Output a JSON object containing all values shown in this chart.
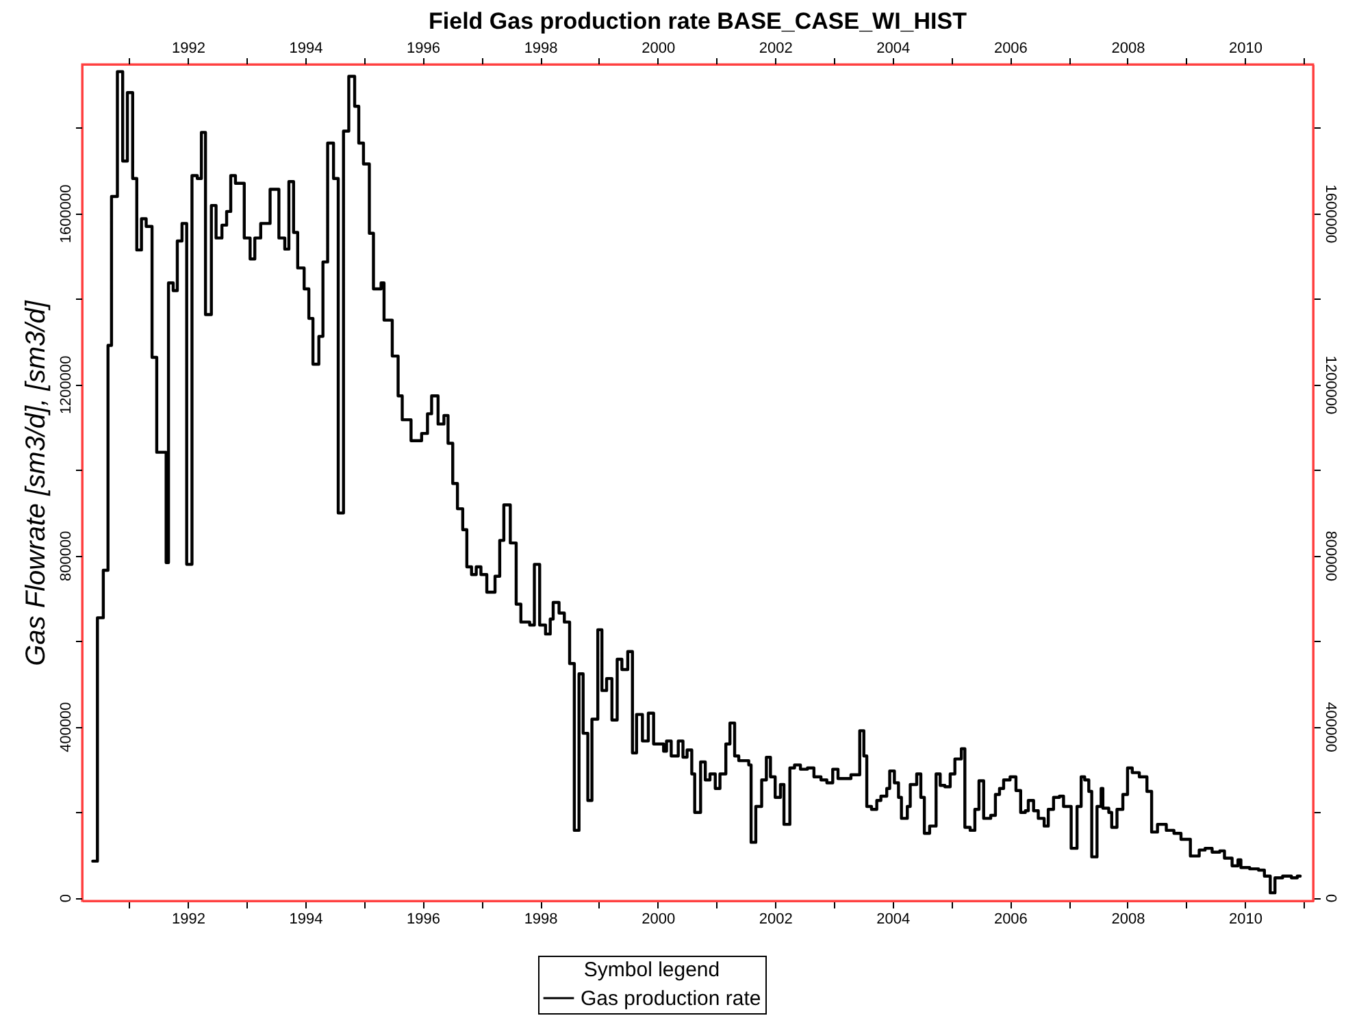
{
  "chart_data": {
    "type": "step",
    "title": "Field Gas production rate BASE_CASE_WI_HIST",
    "ylabel": "Gas Flowrate [sm3/d], [sm3/d]",
    "legend_title": "Symbol legend",
    "legend": "bottom",
    "grid": false,
    "xlim": [
      1990.2,
      2011.16
    ],
    "xticks": [
      {
        "value": 1991,
        "label": null
      },
      1992,
      {
        "value": 1993,
        "label": null
      },
      1994,
      {
        "value": 1995,
        "label": null
      },
      1996,
      {
        "value": 1997,
        "label": null
      },
      1998,
      {
        "value": 1999,
        "label": null
      },
      2000,
      {
        "value": 2001,
        "label": null
      },
      2002,
      {
        "value": 2003,
        "label": null
      },
      2004,
      {
        "value": 2005,
        "label": null
      },
      2006,
      {
        "value": 2007,
        "label": null
      },
      2008,
      {
        "value": 2009,
        "label": null
      },
      2010,
      {
        "value": 2011,
        "label": null
      }
    ],
    "x2lim": [
      1990.2,
      2011.16
    ],
    "x2ticks": [
      {
        "value": 1991,
        "label": null
      },
      1992,
      {
        "value": 1993,
        "label": null
      },
      1994,
      {
        "value": 1995,
        "label": null
      },
      1996,
      {
        "value": 1997,
        "label": null
      },
      1998,
      {
        "value": 1999,
        "label": null
      },
      2000,
      {
        "value": 2001,
        "label": null
      },
      2002,
      {
        "value": 2003,
        "label": null
      },
      2004,
      {
        "value": 2005,
        "label": null
      },
      2006,
      {
        "value": 2007,
        "label": null
      },
      2008,
      {
        "value": 2009,
        "label": null
      },
      2010,
      {
        "value": 2011,
        "label": null
      }
    ],
    "ylim": [
      -8000,
      1948000
    ],
    "yticks": [
      0,
      {
        "value": 200000,
        "label": null
      },
      400000,
      {
        "value": 600000,
        "label": null
      },
      800000,
      {
        "value": 1000000,
        "label": null
      },
      1200000,
      {
        "value": 1400000,
        "label": null
      },
      1600000,
      {
        "value": 1800000,
        "label": null
      }
    ],
    "y2lim": [
      -8000,
      1948000
    ],
    "y2ticks": [
      0,
      {
        "value": 200000,
        "label": null
      },
      400000,
      {
        "value": 600000,
        "label": null
      },
      800000,
      {
        "value": 1000000,
        "label": null
      },
      1200000,
      {
        "value": 1400000,
        "label": null
      },
      1600000,
      {
        "value": 1800000,
        "label": null
      }
    ],
    "series": [
      {
        "name": "Gas production rate",
        "color": "#000000",
        "x": [
          1990.38,
          1990.46,
          1990.56,
          1990.64,
          1990.7,
          1990.8,
          1990.89,
          1990.97,
          1991.06,
          1991.13,
          1991.21,
          1991.29,
          1991.39,
          1991.47,
          1991.63,
          1991.67,
          1991.75,
          1991.82,
          1991.9,
          1991.98,
          1992.07,
          1992.16,
          1992.23,
          1992.3,
          1992.4,
          1992.48,
          1992.58,
          1992.66,
          1992.73,
          1992.81,
          1992.96,
          1993.06,
          1993.14,
          1993.24,
          1993.4,
          1993.55,
          1993.65,
          1993.72,
          1993.8,
          1993.87,
          1993.98,
          1994.06,
          1994.13,
          1994.23,
          1994.3,
          1994.38,
          1994.48,
          1994.56,
          1994.65,
          1994.74,
          1994.84,
          1994.91,
          1994.99,
          1995.09,
          1995.16,
          1995.29,
          1995.34,
          1995.48,
          1995.58,
          1995.65,
          1995.8,
          1995.98,
          1996.08,
          1996.15,
          1996.26,
          1996.36,
          1996.43,
          1996.51,
          1996.59,
          1996.68,
          1996.75,
          1996.83,
          1996.91,
          1996.99,
          1997.09,
          1997.23,
          1997.31,
          1997.38,
          1997.49,
          1997.59,
          1997.67,
          1997.82,
          1997.9,
          1997.99,
          1998.09,
          1998.17,
          1998.22,
          1998.32,
          1998.41,
          1998.5,
          1998.58,
          1998.66,
          1998.73,
          1998.81,
          1998.88,
          1998.98,
          1999.05,
          1999.13,
          1999.22,
          1999.31,
          1999.39,
          1999.49,
          1999.57,
          1999.64,
          1999.74,
          1999.84,
          1999.93,
          2000.1,
          2000.15,
          2000.23,
          2000.35,
          2000.43,
          2000.5,
          2000.58,
          2000.63,
          2000.73,
          2000.81,
          2000.89,
          2000.98,
          2001.06,
          2001.16,
          2001.23,
          2001.31,
          2001.38,
          2001.55,
          2001.59,
          2001.67,
          2001.77,
          2001.85,
          2001.92,
          2002.0,
          2002.09,
          2002.15,
          2002.25,
          2002.33,
          2002.43,
          2002.55,
          2002.66,
          2002.78,
          2002.88,
          2002.98,
          2003.07,
          2003.29,
          2003.44,
          2003.51,
          2003.56,
          2003.64,
          2003.73,
          2003.8,
          2003.9,
          2003.95,
          2004.03,
          2004.1,
          2004.15,
          2004.25,
          2004.3,
          2004.41,
          2004.48,
          2004.54,
          2004.63,
          2004.74,
          2004.81,
          2004.89,
          2004.98,
          2005.06,
          2005.17,
          2005.23,
          2005.32,
          2005.4,
          2005.47,
          2005.55,
          2005.67,
          2005.75,
          2005.82,
          2005.89,
          2006.0,
          2006.1,
          2006.18,
          2006.26,
          2006.31,
          2006.4,
          2006.48,
          2006.58,
          2006.65,
          2006.74,
          2006.84,
          2006.91,
          2007.04,
          2007.14,
          2007.21,
          2007.27,
          2007.34,
          2007.39,
          2007.48,
          2007.55,
          2007.58,
          2007.68,
          2007.73,
          2007.82,
          2007.92,
          2008.0,
          2008.08,
          2008.2,
          2008.33,
          2008.41,
          2008.51,
          2008.66,
          2008.79,
          2008.91,
          2009.07,
          2009.22,
          2009.32,
          2009.44,
          2009.57,
          2009.65,
          2009.78,
          2009.88,
          2009.93,
          2010.08,
          2010.23,
          2010.33,
          2010.43,
          2010.51,
          2010.64,
          2010.79,
          2010.89,
          2010.94
        ],
        "values": [
          85000,
          654000,
          765000,
          1291000,
          1639000,
          1931000,
          1722000,
          1882000,
          1681000,
          1514000,
          1587000,
          1569000,
          1263000,
          1041000,
          783000,
          1437000,
          1419000,
          1535000,
          1576000,
          779000,
          1688000,
          1681000,
          1789000,
          1363000,
          1618000,
          1542000,
          1572000,
          1604000,
          1688000,
          1670000,
          1542000,
          1493000,
          1542000,
          1576000,
          1656000,
          1542000,
          1516000,
          1674000,
          1555000,
          1472000,
          1423000,
          1354000,
          1247000,
          1312000,
          1486000,
          1764000,
          1681000,
          899000,
          1792000,
          1920000,
          1850000,
          1764000,
          1715000,
          1553000,
          1423000,
          1437000,
          1350000,
          1266000,
          1173000,
          1117000,
          1068000,
          1085000,
          1131000,
          1173000,
          1107000,
          1127000,
          1062000,
          968000,
          909000,
          860000,
          773000,
          755000,
          773000,
          755000,
          714000,
          751000,
          835000,
          918000,
          829000,
          686000,
          644000,
          637000,
          779000,
          637000,
          616000,
          651000,
          690000,
          665000,
          644000,
          547000,
          157000,
          523000,
          384000,
          227000,
          417000,
          626000,
          484000,
          512000,
          415000,
          557000,
          533000,
          575000,
          338000,
          428000,
          366000,
          431000,
          359000,
          342000,
          366000,
          331000,
          366000,
          328000,
          345000,
          289000,
          199000,
          317000,
          275000,
          289000,
          255000,
          289000,
          359000,
          408000,
          331000,
          320000,
          310000,
          129000,
          213000,
          275000,
          328000,
          282000,
          234000,
          264000,
          171000,
          303000,
          310000,
          300000,
          303000,
          282000,
          275000,
          268000,
          300000,
          278000,
          287000,
          390000,
          331000,
          213000,
          206000,
          227000,
          237000,
          255000,
          296000,
          268000,
          234000,
          185000,
          213000,
          264000,
          289000,
          234000,
          150000,
          167000,
          289000,
          262000,
          259000,
          289000,
          324000,
          348000,
          164000,
          157000,
          206000,
          273000,
          185000,
          192000,
          241000,
          255000,
          275000,
          282000,
          250000,
          199000,
          203000,
          227000,
          203000,
          185000,
          167000,
          206000,
          234000,
          237000,
          213000,
          115000,
          213000,
          282000,
          275000,
          248000,
          95000,
          213000,
          255000,
          209000,
          199000,
          164000,
          206000,
          241000,
          303000,
          292000,
          282000,
          248000,
          153000,
          171000,
          157000,
          150000,
          136000,
          97000,
          111000,
          115000,
          106000,
          109000,
          92000,
          74000,
          88000,
          70000,
          67000,
          64000,
          50000,
          11000,
          46000,
          50000,
          46000,
          50000,
          50000
        ]
      }
    ]
  }
}
